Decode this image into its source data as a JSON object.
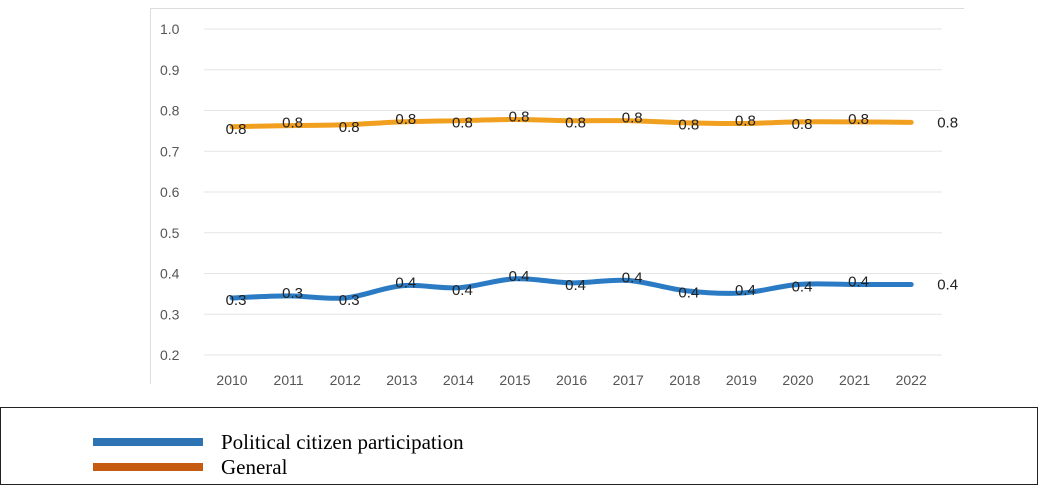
{
  "chart_data": {
    "type": "line",
    "categories": [
      "2010",
      "2011",
      "2012",
      "2013",
      "2014",
      "2015",
      "2016",
      "2017",
      "2018",
      "2019",
      "2020",
      "2021",
      "2022"
    ],
    "ylim": [
      0.2,
      1.0
    ],
    "yticks": [
      "0.2",
      "0.3",
      "0.4",
      "0.5",
      "0.6",
      "0.7",
      "0.8",
      "0.9",
      "1.0"
    ],
    "grid": true,
    "series": [
      {
        "name": "Political citizen participation",
        "color": "#2b7bc4",
        "legend_color": "#2e74b5",
        "values": [
          0.34,
          0.345,
          0.34,
          0.37,
          0.365,
          0.387,
          0.377,
          0.383,
          0.358,
          0.352,
          0.373,
          0.373,
          0.373
        ],
        "labels": [
          "0.3",
          "0.3",
          "0.3",
          "0.4",
          "0.4",
          "0.4",
          "0.4",
          "0.4",
          "0.4",
          "0.4",
          "0.4",
          "0.4",
          "0.4"
        ]
      },
      {
        "name": "General",
        "color": "#f0a01e",
        "legend_color": "#c55a11",
        "values": [
          0.76,
          0.763,
          0.765,
          0.772,
          0.775,
          0.778,
          0.775,
          0.775,
          0.77,
          0.768,
          0.772,
          0.772,
          0.771
        ],
        "labels": [
          "0.8",
          "0.8",
          "0.8",
          "0.8",
          "0.8",
          "0.8",
          "0.8",
          "0.8",
          "0.8",
          "0.8",
          "0.8",
          "0.8",
          "0.8"
        ]
      }
    ]
  },
  "legend": {
    "items": [
      {
        "label": "Political citizen participation",
        "color": "#2e74b5"
      },
      {
        "label": "General",
        "color": "#c55a11"
      }
    ]
  }
}
